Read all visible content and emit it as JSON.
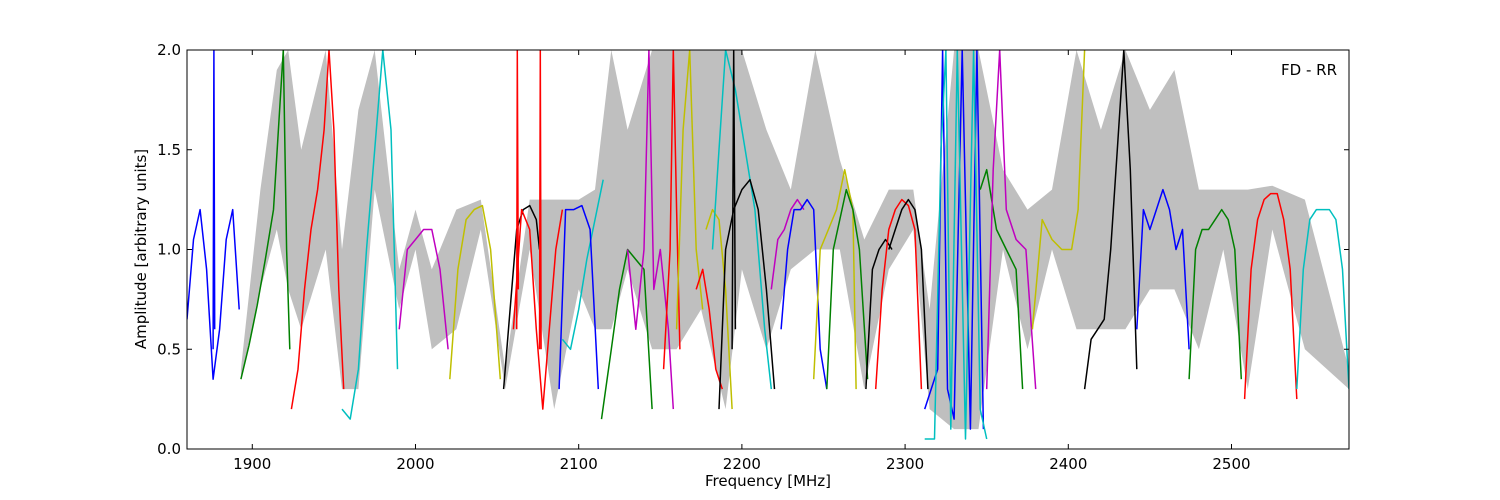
{
  "chart_data": {
    "type": "line",
    "xlabel": "Frequency [MHz]",
    "ylabel": "Amplitude [arbitrary units]",
    "annotation": "FD - RR",
    "xlim": [
      1860,
      2572
    ],
    "ylim": [
      0.0,
      2.0
    ],
    "xticks": [
      1900,
      2000,
      2100,
      2200,
      2300,
      2400,
      2500
    ],
    "xtick_labels": [
      "1900",
      "2000",
      "2100",
      "2200",
      "2300",
      "2400",
      "2500"
    ],
    "yticks": [
      0.0,
      0.5,
      1.0,
      1.5,
      2.0
    ],
    "ytick_labels": [
      "0.0",
      "0.5",
      "1.0",
      "1.5",
      "2.0"
    ],
    "grid": false,
    "legend": "none",
    "background_band": {
      "color": "#bfbfbf",
      "x": [
        1893,
        1905,
        1915,
        1922,
        1930,
        1945,
        1955,
        1965,
        1975,
        1990,
        2000,
        2010,
        2025,
        2040,
        2055,
        2070,
        2085,
        2100,
        2110,
        2120,
        2130,
        2145,
        2160,
        2175,
        2190,
        2200,
        2215,
        2230,
        2245,
        2260,
        2275,
        2290,
        2305,
        2315,
        2330,
        2345,
        2360,
        2375,
        2390,
        2405,
        2420,
        2435,
        2450,
        2465,
        2480,
        2495,
        2510,
        2525,
        2545,
        2572
      ],
      "low": [
        0.35,
        0.8,
        1.1,
        0.8,
        0.6,
        1.0,
        0.3,
        0.3,
        1.3,
        0.7,
        1.0,
        0.5,
        0.6,
        1.1,
        0.3,
        1.0,
        0.2,
        0.8,
        0.6,
        0.6,
        0.9,
        0.5,
        0.5,
        0.7,
        0.2,
        0.9,
        0.5,
        0.9,
        1.0,
        1.0,
        0.3,
        0.9,
        1.1,
        0.2,
        0.1,
        0.1,
        1.0,
        0.5,
        1.0,
        0.6,
        0.6,
        0.6,
        0.8,
        0.8,
        0.5,
        1.0,
        0.3,
        1.1,
        0.5,
        0.3
      ],
      "high": [
        0.4,
        1.3,
        1.9,
        2.0,
        1.5,
        2.0,
        1.0,
        1.7,
        2.0,
        0.9,
        1.2,
        0.9,
        1.2,
        1.25,
        0.4,
        1.25,
        1.25,
        1.25,
        1.3,
        2.0,
        1.6,
        2.0,
        2.0,
        2.0,
        2.0,
        2.0,
        1.6,
        1.3,
        2.0,
        1.45,
        1.05,
        1.3,
        1.3,
        0.7,
        2.0,
        2.0,
        1.4,
        1.2,
        1.3,
        2.0,
        1.6,
        2.0,
        1.7,
        1.9,
        1.3,
        1.3,
        1.3,
        1.32,
        1.25,
        0.4
      ]
    },
    "series": [
      {
        "color": "#0000ff",
        "x": [
          1860,
          1864,
          1868,
          1872,
          1876,
          1880,
          1884,
          1888,
          1892
        ],
        "y": [
          0.65,
          1.05,
          1.2,
          0.9,
          0.35,
          0.6,
          1.05,
          1.2,
          0.7
        ]
      },
      {
        "color": "#0000ff",
        "x": [
          1876,
          1876.5,
          1877
        ],
        "y": [
          0.5,
          2.0,
          0.6
        ]
      },
      {
        "color": "#008000",
        "x": [
          1893,
          1898,
          1903,
          1908,
          1913,
          1916,
          1919,
          1921,
          1923
        ],
        "y": [
          0.35,
          0.52,
          0.72,
          0.95,
          1.2,
          1.6,
          2.0,
          1.0,
          0.5
        ]
      },
      {
        "color": "#ff0000",
        "x": [
          1924,
          1928,
          1932,
          1936,
          1940,
          1944,
          1947,
          1950,
          1953,
          1956
        ],
        "y": [
          0.2,
          0.4,
          0.8,
          1.1,
          1.3,
          1.6,
          2.0,
          1.6,
          0.8,
          0.3
        ]
      },
      {
        "color": "#00bfbf",
        "x": [
          1955,
          1960,
          1965,
          1970,
          1975,
          1980,
          1985,
          1989
        ],
        "y": [
          0.2,
          0.15,
          0.4,
          1.0,
          1.5,
          2.0,
          1.6,
          0.4
        ]
      },
      {
        "color": "#bf00bf",
        "x": [
          1990,
          1995,
          2000,
          2005,
          2010,
          2015,
          2020
        ],
        "y": [
          0.6,
          1.0,
          1.05,
          1.1,
          1.1,
          0.9,
          0.5
        ]
      },
      {
        "color": "#bfbf00",
        "x": [
          2021,
          2026,
          2031,
          2036,
          2041,
          2046,
          2052
        ],
        "y": [
          0.35,
          0.9,
          1.15,
          1.2,
          1.22,
          1.0,
          0.35
        ]
      },
      {
        "color": "#000000",
        "x": [
          2054,
          2058,
          2062,
          2066,
          2070,
          2074,
          2076
        ],
        "y": [
          0.3,
          0.7,
          1.1,
          1.2,
          1.22,
          1.15,
          1.0
        ]
      },
      {
        "color": "#ff0000",
        "x": [
          2060,
          2065,
          2070,
          2074,
          2078,
          2082,
          2086,
          2090
        ],
        "y": [
          0.6,
          1.2,
          1.1,
          0.6,
          0.2,
          0.6,
          1.0,
          1.2
        ]
      },
      {
        "color": "#ff0000",
        "x": [
          2062,
          2062.4,
          2063
        ],
        "y": [
          0.6,
          2.0,
          0.8
        ]
      },
      {
        "color": "#ff0000",
        "x": [
          2076,
          2076.5,
          2077
        ],
        "y": [
          0.5,
          2.0,
          0.5
        ]
      },
      {
        "color": "#00bfbf",
        "x": [
          2090,
          2095,
          2100,
          2105,
          2110,
          2115
        ],
        "y": [
          0.55,
          0.5,
          0.7,
          0.95,
          1.15,
          1.35
        ]
      },
      {
        "color": "#0000ff",
        "x": [
          2088,
          2092,
          2097,
          2102,
          2107,
          2112
        ],
        "y": [
          0.3,
          1.2,
          1.2,
          1.22,
          1.1,
          0.3
        ]
      },
      {
        "color": "#008000",
        "x": [
          2114,
          2120,
          2125,
          2130,
          2135,
          2140,
          2145
        ],
        "y": [
          0.15,
          0.5,
          0.8,
          1.0,
          0.95,
          0.9,
          0.2
        ]
      },
      {
        "color": "#bf00bf",
        "x": [
          2130,
          2135,
          2140,
          2143,
          2146,
          2150,
          2155,
          2158
        ],
        "y": [
          1.0,
          0.6,
          1.0,
          2.0,
          0.8,
          1.0,
          0.6,
          0.2
        ]
      },
      {
        "color": "#ff0000",
        "x": [
          2152,
          2156,
          2158,
          2160,
          2162
        ],
        "y": [
          0.4,
          1.0,
          2.0,
          1.2,
          0.5
        ]
      },
      {
        "color": "#bfbf00",
        "x": [
          2160,
          2164,
          2168,
          2172,
          2176
        ],
        "y": [
          0.6,
          1.6,
          2.0,
          1.0,
          0.7
        ]
      },
      {
        "color": "#ff0000",
        "x": [
          2172,
          2176,
          2180,
          2184,
          2188
        ],
        "y": [
          0.8,
          0.9,
          0.7,
          0.4,
          0.3
        ]
      },
      {
        "color": "#bfbf00",
        "x": [
          2178,
          2182,
          2186,
          2190,
          2194
        ],
        "y": [
          1.1,
          1.2,
          1.15,
          0.8,
          0.2
        ]
      },
      {
        "color": "#00bfbf",
        "x": [
          2182,
          2186,
          2190,
          2196,
          2202,
          2208,
          2214,
          2218
        ],
        "y": [
          1.0,
          1.5,
          2.0,
          1.8,
          1.5,
          1.2,
          0.6,
          0.3
        ]
      },
      {
        "color": "#000000",
        "x": [
          2186,
          2190,
          2195,
          2200,
          2205,
          2210,
          2215,
          2220
        ],
        "y": [
          0.2,
          1.0,
          1.2,
          1.3,
          1.35,
          1.2,
          0.8,
          0.3
        ]
      },
      {
        "color": "#000000",
        "x": [
          2194,
          2195,
          2196
        ],
        "y": [
          0.5,
          2.0,
          0.6
        ]
      },
      {
        "color": "#bf00bf",
        "x": [
          2218,
          2222,
          2226,
          2230,
          2234,
          2238
        ],
        "y": [
          0.8,
          1.05,
          1.1,
          1.2,
          1.25,
          1.2
        ]
      },
      {
        "color": "#0000ff",
        "x": [
          2224,
          2228,
          2232,
          2236,
          2240,
          2244,
          2248,
          2252
        ],
        "y": [
          0.6,
          1.0,
          1.2,
          1.2,
          1.25,
          1.2,
          0.5,
          0.3
        ]
      },
      {
        "color": "#bfbf00",
        "x": [
          2244,
          2248,
          2253,
          2258,
          2263,
          2268,
          2270
        ],
        "y": [
          0.35,
          1.0,
          1.1,
          1.2,
          1.4,
          1.2,
          0.3
        ]
      },
      {
        "color": "#008000",
        "x": [
          2252,
          2256,
          2260,
          2264,
          2268,
          2272,
          2277
        ],
        "y": [
          0.3,
          1.0,
          1.15,
          1.3,
          1.2,
          1.0,
          0.35
        ]
      },
      {
        "color": "#000000",
        "x": [
          2276,
          2280,
          2284,
          2288,
          2292
        ],
        "y": [
          0.3,
          0.9,
          1.0,
          1.05,
          1.0
        ]
      },
      {
        "color": "#ff0000",
        "x": [
          2282,
          2286,
          2290,
          2294,
          2298,
          2302,
          2306,
          2310
        ],
        "y": [
          0.3,
          0.8,
          1.1,
          1.2,
          1.25,
          1.22,
          1.1,
          0.3
        ]
      },
      {
        "color": "#000000",
        "x": [
          2290,
          2294,
          2298,
          2302,
          2306,
          2310,
          2314
        ],
        "y": [
          1.0,
          1.1,
          1.2,
          1.25,
          1.2,
          1.0,
          0.3
        ]
      },
      {
        "color": "#0000ff",
        "x": [
          2312,
          2316,
          2320,
          2323,
          2326,
          2330,
          2335,
          2340,
          2344,
          2348
        ],
        "y": [
          0.2,
          0.3,
          0.4,
          2.0,
          0.3,
          0.15,
          2.0,
          0.1,
          2.0,
          0.1
        ]
      },
      {
        "color": "#00bfbf",
        "x": [
          2312,
          2318,
          2322,
          2325,
          2328,
          2332,
          2337,
          2342,
          2346,
          2350
        ],
        "y": [
          0.05,
          0.05,
          1.5,
          2.0,
          0.1,
          2.0,
          0.05,
          2.0,
          0.2,
          0.05
        ]
      },
      {
        "color": "#008000",
        "x": [
          2346,
          2350,
          2356,
          2362,
          2368,
          2372
        ],
        "y": [
          1.3,
          1.4,
          1.1,
          1.0,
          0.9,
          0.3
        ]
      },
      {
        "color": "#bf00bf",
        "x": [
          2350,
          2354,
          2358,
          2362,
          2368,
          2374,
          2380
        ],
        "y": [
          0.3,
          1.4,
          2.0,
          1.2,
          1.05,
          1.0,
          0.3
        ]
      },
      {
        "color": "#bfbf00",
        "x": [
          2378,
          2384,
          2390,
          2396,
          2402,
          2406,
          2410
        ],
        "y": [
          0.6,
          1.15,
          1.05,
          1.0,
          1.0,
          1.2,
          2.0
        ]
      },
      {
        "color": "#000000",
        "x": [
          2410,
          2414,
          2418,
          2422,
          2426,
          2430,
          2434,
          2438,
          2442
        ],
        "y": [
          0.3,
          0.55,
          0.6,
          0.65,
          1.0,
          1.5,
          2.0,
          1.4,
          0.4
        ]
      },
      {
        "color": "#0000ff",
        "x": [
          2442,
          2446,
          2450,
          2454,
          2458,
          2462,
          2466,
          2470,
          2474
        ],
        "y": [
          0.6,
          1.2,
          1.1,
          1.2,
          1.3,
          1.2,
          1.0,
          1.1,
          0.5
        ]
      },
      {
        "color": "#008000",
        "x": [
          2474,
          2478,
          2482,
          2486,
          2490,
          2494,
          2498,
          2502,
          2506
        ],
        "y": [
          0.35,
          1.0,
          1.1,
          1.1,
          1.15,
          1.2,
          1.15,
          1.0,
          0.35
        ]
      },
      {
        "color": "#ff0000",
        "x": [
          2508,
          2512,
          2516,
          2520,
          2524,
          2528,
          2532,
          2536,
          2540
        ],
        "y": [
          0.25,
          0.9,
          1.15,
          1.25,
          1.28,
          1.28,
          1.15,
          0.9,
          0.25
        ]
      },
      {
        "color": "#00bfbf",
        "x": [
          2540,
          2544,
          2548,
          2552,
          2556,
          2560,
          2564,
          2568,
          2572
        ],
        "y": [
          0.3,
          0.9,
          1.15,
          1.2,
          1.2,
          1.2,
          1.15,
          0.9,
          0.3
        ]
      }
    ]
  }
}
